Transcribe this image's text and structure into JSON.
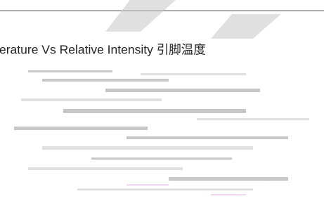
{
  "title": "erature Vs Relative Intensity 引脚温度"
}
